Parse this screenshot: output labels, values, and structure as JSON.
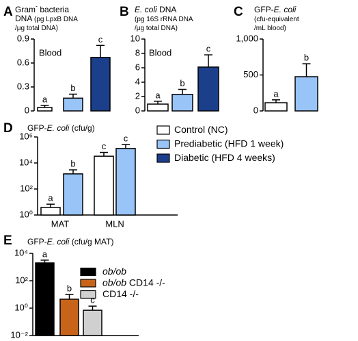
{
  "chart_data": [
    {
      "type": "bar",
      "panel": "A",
      "title_lines": [
        [
          {
            "text": "Gram"
          },
          {
            "text": "-",
            "sup": true
          },
          {
            "text": " bacteria"
          }
        ],
        [
          {
            "text": "DNA "
          },
          {
            "text": "(pg LpxB DNA",
            "small": true
          }
        ],
        [
          {
            "text": "/μg total DNA)",
            "small": true
          }
        ]
      ],
      "annotation": "Blood",
      "values": [
        0.043,
        0.16,
        0.67
      ],
      "errors": [
        0.027,
        0.05,
        0.15
      ],
      "letters": [
        "a",
        "b",
        "c"
      ],
      "colors": [
        "#ffffff",
        "#99c4f7",
        "#1c3f8c"
      ],
      "ylim": [
        0,
        0.9
      ],
      "yticks": [
        0,
        0.3,
        0.6,
        0.9
      ]
    },
    {
      "type": "bar",
      "panel": "B",
      "title_lines": [
        [
          {
            "text": "E. coli",
            "italic": true
          },
          {
            "text": " DNA"
          }
        ],
        [
          {
            "text": "(pg 16S rRNA DNA",
            "small": true
          }
        ],
        [
          {
            "text": "/μg total DNA)",
            "small": true
          }
        ]
      ],
      "annotation": "Blood",
      "values": [
        0.95,
        2.3,
        6.1
      ],
      "errors": [
        0.4,
        0.7,
        1.7
      ],
      "letters": [
        "a",
        "b",
        "c"
      ],
      "colors": [
        "#ffffff",
        "#99c4f7",
        "#1c3f8c"
      ],
      "ylim": [
        0,
        10
      ],
      "yticks": [
        0,
        2,
        4,
        6,
        8,
        10
      ]
    },
    {
      "type": "bar",
      "panel": "C",
      "title_lines": [
        [
          {
            "text": "GFP-"
          },
          {
            "text": "E. coli",
            "italic": true
          }
        ],
        [
          {
            "text": "(cfu-equivalent",
            "small": true
          }
        ],
        [
          {
            "text": "/mL blood)",
            "small": true
          }
        ]
      ],
      "values": [
        114,
        476
      ],
      "errors": [
        40,
        180
      ],
      "letters": [
        "a",
        "b"
      ],
      "colors": [
        "#ffffff",
        "#99c4f7"
      ],
      "ylim": [
        0,
        1000
      ],
      "yticks": [
        0,
        500,
        {
          "value": 1000,
          "label": "1,000"
        }
      ]
    },
    {
      "type": "bar",
      "panel": "D",
      "log": true,
      "title_lines": [
        [
          {
            "text": "GFP-"
          },
          {
            "text": "E. coli",
            "italic": true
          },
          {
            "text": " (cfu/g)"
          }
        ]
      ],
      "categories": [
        "MAT",
        "MLN"
      ],
      "series": [
        {
          "color": "#ffffff",
          "values": [
            3.8,
            33000
          ],
          "errors": [
            3,
            32000
          ],
          "letters": [
            "a",
            "c"
          ]
        },
        {
          "color": "#99c4f7",
          "values": [
            1450,
            130000
          ],
          "errors": [
            1500,
            130000
          ],
          "letters": [
            "b",
            "c"
          ]
        }
      ],
      "legend": [
        {
          "color": "#ffffff",
          "name": [
            {
              "text": "Control (NC)"
            }
          ]
        },
        {
          "color": "#99c4f7",
          "name": [
            {
              "text": "Prediabetic (HFD 1 week)"
            }
          ]
        },
        {
          "color": "#1c3f8c",
          "name": [
            {
              "text": "Diabetic (HFD 4 weeks)"
            }
          ]
        }
      ],
      "ylim": [
        1,
        1000000
      ],
      "yticks": [
        {
          "value": 1,
          "label": "10⁰"
        },
        {
          "value": 100,
          "label": "10²"
        },
        {
          "value": 10000,
          "label": "10⁴"
        },
        {
          "value": 1000000,
          "label": "10⁶"
        }
      ]
    },
    {
      "type": "bar",
      "panel": "E",
      "log": true,
      "title_lines": [
        [
          {
            "text": "GFP-"
          },
          {
            "text": "E. coli",
            "italic": true
          },
          {
            "text": " (cfu/g MAT)"
          }
        ]
      ],
      "values": [
        2000,
        4.5,
        0.7
      ],
      "errors": [
        1200,
        5.5,
        0.7
      ],
      "letters": [
        "a",
        "b",
        "c"
      ],
      "colors": [
        "#000000",
        "#c8641a",
        "#d0d0d0"
      ],
      "legend": [
        {
          "color": "#000000",
          "name": [
            {
              "text": "ob/ob",
              "italic": true
            }
          ]
        },
        {
          "color": "#c8641a",
          "name": [
            {
              "text": "ob/ob",
              "italic": true
            },
            {
              "text": " CD14 -/-"
            }
          ]
        },
        {
          "color": "#d0d0d0",
          "name": [
            {
              "text": "CD14 -/-"
            }
          ]
        }
      ],
      "ylim": [
        0.01,
        10000
      ],
      "yticks": [
        {
          "value": 0.01,
          "label": "10⁻²"
        },
        {
          "value": 1,
          "label": "10⁰"
        },
        {
          "value": 100,
          "label": "10²"
        },
        {
          "value": 10000,
          "label": "10⁴"
        }
      ]
    }
  ]
}
